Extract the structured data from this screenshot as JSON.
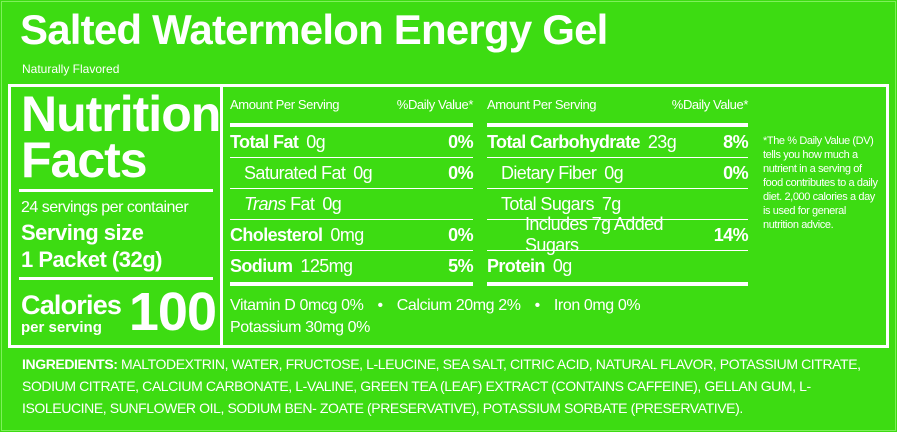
{
  "title": "Salted Watermelon Energy Gel",
  "subtitle": "Naturally Flavored",
  "facts": {
    "heading_1": "Nutrition",
    "heading_2": "Facts",
    "servings": "24 servings per container",
    "serving_size_label": "Serving size",
    "serving_size": "1 Packet (32g)",
    "calories_label": "Calories",
    "calories_sub": "per serving",
    "calories": "100"
  },
  "tables": [
    {
      "header_amount": "Amount Per Serving",
      "header_dv": "%Daily Value*",
      "rows": [
        {
          "label": "Total Fat",
          "amount": "0g",
          "dv": "0%",
          "bold": true,
          "indent": 0
        },
        {
          "label": "Saturated Fat",
          "amount": "0g",
          "dv": "0%",
          "bold": false,
          "indent": 1
        },
        {
          "label_italic": "Trans",
          "label": "Fat",
          "amount": "0g",
          "bold": false,
          "indent": 1
        },
        {
          "label": "Cholesterol",
          "amount": "0mg",
          "dv": "0%",
          "bold": true,
          "indent": 0
        },
        {
          "label": "Sodium",
          "amount": "125mg",
          "dv": "5%",
          "bold": true,
          "indent": 0
        }
      ]
    },
    {
      "header_amount": "Amount Per Serving",
      "header_dv": "%Daily Value*",
      "rows": [
        {
          "label": "Total Carbohydrate",
          "amount": "23g",
          "dv": "8%",
          "bold": true,
          "indent": 0
        },
        {
          "label": "Dietary Fiber",
          "amount": "0g",
          "dv": "0%",
          "bold": false,
          "indent": 1
        },
        {
          "label": "Total Sugars",
          "amount": "7g",
          "bold": false,
          "indent": 1
        },
        {
          "label": "Includes 7g Added Sugars",
          "dv": "14%",
          "bold": false,
          "indent": 2
        },
        {
          "label": "Protein",
          "amount": "0g",
          "bold": true,
          "indent": 0
        }
      ]
    }
  ],
  "micronutrients": [
    "Vitamin D 0mcg 0%",
    "Calcium 20mg 2%",
    "Iron 0mg 0%",
    "Potassium 30mg 0%"
  ],
  "footnote": "*The % Daily Value (DV) tells you how much a nutrient in a serving of food contributes to a daily diet. 2,000 calories a day is used for general nutrition advice.",
  "ingredients": {
    "label": "INGREDIENTS:",
    "text": "MALTODEXTRIN, WATER, FRUCTOSE, L-LEUCINE, SEA SALT, CITRIC ACID, NATURAL FLAVOR, POTASSIUM CITRATE, SODIUM CITRATE, CALCIUM CARBONATE, L-VALINE, GREEN TEA (LEAF) EXTRACT (CONTAINS CAFFEINE), GELLAN GUM, L-ISOLEUCINE, SUNFLOWER OIL, SODIUM BEN- ZOATE (PRESERVATIVE), POTASSIUM SORBATE (PRESERVATIVE)."
  }
}
